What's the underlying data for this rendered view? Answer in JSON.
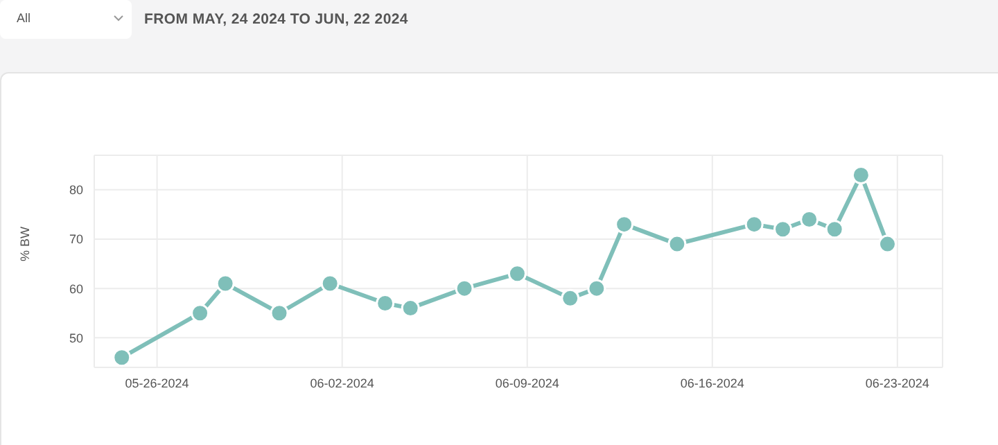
{
  "chart_data": {
    "type": "line",
    "title": "FROM MAY, 24 2024 TO JUN, 22 2024",
    "annotations": [
      "All"
    ],
    "ylabel": "% BW",
    "x": [
      "2024-05-24T16:00",
      "2024-05-27T15:00",
      "2024-05-28T14:00",
      "2024-05-30T15:00",
      "2024-06-01T13:00",
      "2024-06-03T15:00",
      "2024-06-04T14:00",
      "2024-06-06T15:00",
      "2024-06-08T15:00",
      "2024-06-10T15:00",
      "2024-06-11T15:00",
      "2024-06-12T16:00",
      "2024-06-14T16:00",
      "2024-06-17T14:00",
      "2024-06-18T16:00",
      "2024-06-19T16:00",
      "2024-06-20T15:00",
      "2024-06-21T15:00",
      "2024-06-22T15:00"
    ],
    "series": [
      {
        "color": "#7fbfb9",
        "values": [
          46,
          55,
          61,
          55,
          61,
          57,
          56,
          60,
          63,
          58,
          60,
          73,
          69,
          73,
          72,
          74,
          72,
          83,
          69
        ]
      }
    ],
    "xlim": [
      "2024-05-23T15:00",
      "2024-06-24T17:00"
    ],
    "xticks": [
      {
        "value": "2024-05-26",
        "label": "05-26-2024"
      },
      {
        "value": "2024-06-02",
        "label": "06-02-2024"
      },
      {
        "value": "2024-06-09",
        "label": "06-09-2024"
      },
      {
        "value": "2024-06-16",
        "label": "06-16-2024"
      },
      {
        "value": "2024-06-23",
        "label": "06-23-2024"
      }
    ],
    "ylim": [
      44,
      87
    ],
    "yticks": [
      50,
      60,
      70,
      80
    ],
    "grid": true,
    "marker": "circle",
    "line_style": "solid",
    "legend": false
  }
}
